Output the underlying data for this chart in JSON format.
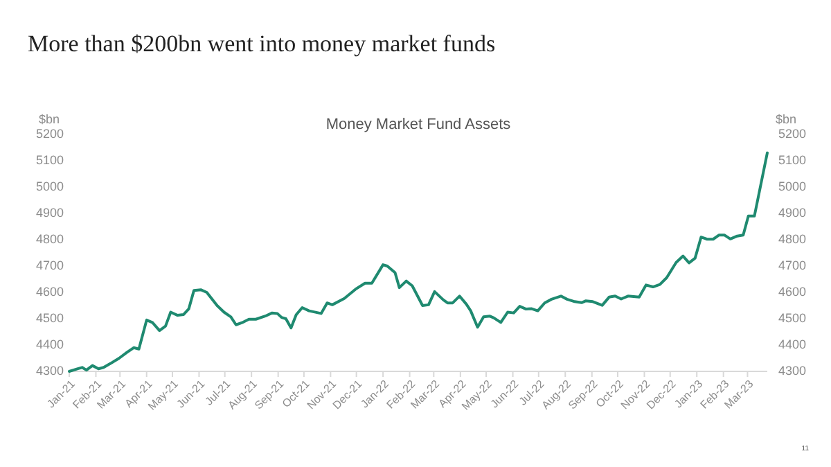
{
  "chart_data": {
    "type": "line",
    "title": "More than $200bn went into money market funds",
    "subtitle": "Money Market Fund Assets",
    "ylabel": "$bn",
    "y2label": "$bn",
    "annotations": [
      "11"
    ],
    "x": [
      "2021-01-01",
      "2021-01-11",
      "2021-01-16",
      "2021-01-21",
      "2021-01-28",
      "2021-02-04",
      "2021-02-10",
      "2021-02-18",
      "2021-02-28",
      "2021-03-09",
      "2021-03-17",
      "2021-03-23",
      "2021-04-01",
      "2021-04-08",
      "2021-04-16",
      "2021-04-23",
      "2021-04-29",
      "2021-05-07",
      "2021-05-14",
      "2021-05-20",
      "2021-05-26",
      "2021-06-03",
      "2021-06-10",
      "2021-06-22",
      "2021-06-30",
      "2021-07-08",
      "2021-07-14",
      "2021-07-21",
      "2021-07-29",
      "2021-08-06",
      "2021-08-17",
      "2021-08-25",
      "2021-08-31",
      "2021-09-05",
      "2021-09-10",
      "2021-09-16",
      "2021-09-22",
      "2021-09-29",
      "2021-10-07",
      "2021-10-21",
      "2021-10-28",
      "2021-11-03",
      "2021-11-17",
      "2021-11-30",
      "2021-12-11",
      "2021-12-19",
      "2022-01-01",
      "2022-01-06",
      "2022-01-15",
      "2022-01-20",
      "2022-01-28",
      "2022-02-04",
      "2022-02-16",
      "2022-02-23",
      "2022-03-02",
      "2022-03-12",
      "2022-03-17",
      "2022-03-23",
      "2022-03-31",
      "2022-04-08",
      "2022-04-13",
      "2022-04-21",
      "2022-04-28",
      "2022-05-05",
      "2022-05-10",
      "2022-05-18",
      "2022-05-26",
      "2022-06-02",
      "2022-06-09",
      "2022-06-16",
      "2022-06-23",
      "2022-06-30",
      "2022-07-08",
      "2022-07-16",
      "2022-07-27",
      "2022-08-03",
      "2022-08-12",
      "2022-08-20",
      "2022-08-25",
      "2022-09-02",
      "2022-09-13",
      "2022-09-21",
      "2022-09-28",
      "2022-10-05",
      "2022-10-13",
      "2022-10-26",
      "2022-11-03",
      "2022-11-11",
      "2022-11-19",
      "2022-11-27",
      "2022-12-08",
      "2022-12-16",
      "2022-12-23",
      "2022-12-30",
      "2023-01-06",
      "2023-01-13",
      "2023-01-20",
      "2023-01-27",
      "2023-02-02",
      "2023-02-09",
      "2023-02-17",
      "2023-02-24",
      "2023-03-02",
      "2023-03-09",
      "2023-03-24"
    ],
    "series": [
      {
        "color": "#1f8a70",
        "values": [
          4300,
          4310,
          4315,
          4305,
          4322,
          4310,
          4315,
          4330,
          4350,
          4372,
          4390,
          4385,
          4495,
          4485,
          4455,
          4472,
          4525,
          4513,
          4516,
          4537,
          4607,
          4610,
          4600,
          4550,
          4525,
          4507,
          4477,
          4485,
          4498,
          4498,
          4510,
          4522,
          4520,
          4505,
          4500,
          4465,
          4515,
          4542,
          4530,
          4520,
          4560,
          4553,
          4577,
          4612,
          4635,
          4635,
          4705,
          4700,
          4675,
          4618,
          4643,
          4625,
          4550,
          4553,
          4603,
          4572,
          4560,
          4560,
          4586,
          4555,
          4530,
          4468,
          4507,
          4510,
          4503,
          4486,
          4525,
          4522,
          4547,
          4537,
          4538,
          4530,
          4560,
          4574,
          4586,
          4574,
          4565,
          4561,
          4568,
          4565,
          4551,
          4582,
          4586,
          4575,
          4586,
          4582,
          4628,
          4621,
          4630,
          4656,
          4714,
          4738,
          4712,
          4730,
          4810,
          4802,
          4802,
          4818,
          4818,
          4803,
          4814,
          4818,
          4890,
          4890,
          5130
        ]
      }
    ],
    "xlim": [
      "2021-01-01",
      "2023-03-24"
    ],
    "xticks": [
      {
        "value": "2021-01-01",
        "label": "Jan-21"
      },
      {
        "value": "2021-02-01",
        "label": "Feb-21"
      },
      {
        "value": "2021-03-01",
        "label": "Mar-21"
      },
      {
        "value": "2021-04-01",
        "label": "Apr-21"
      },
      {
        "value": "2021-05-01",
        "label": "May-21"
      },
      {
        "value": "2021-06-01",
        "label": "Jun-21"
      },
      {
        "value": "2021-07-01",
        "label": "Jul-21"
      },
      {
        "value": "2021-08-01",
        "label": "Aug-21"
      },
      {
        "value": "2021-09-01",
        "label": "Sep-21"
      },
      {
        "value": "2021-10-01",
        "label": "Oct-21"
      },
      {
        "value": "2021-11-01",
        "label": "Nov-21"
      },
      {
        "value": "2021-12-01",
        "label": "Dec-21"
      },
      {
        "value": "2022-01-01",
        "label": "Jan-22"
      },
      {
        "value": "2022-02-01",
        "label": "Feb-22"
      },
      {
        "value": "2022-03-01",
        "label": "Mar-22"
      },
      {
        "value": "2022-04-01",
        "label": "Apr-22"
      },
      {
        "value": "2022-05-01",
        "label": "May-22"
      },
      {
        "value": "2022-06-01",
        "label": "Jun-22"
      },
      {
        "value": "2022-07-01",
        "label": "Jul-22"
      },
      {
        "value": "2022-08-01",
        "label": "Aug-22"
      },
      {
        "value": "2022-09-01",
        "label": "Sep-22"
      },
      {
        "value": "2022-10-01",
        "label": "Oct-22"
      },
      {
        "value": "2022-11-01",
        "label": "Nov-22"
      },
      {
        "value": "2022-12-01",
        "label": "Dec-22"
      },
      {
        "value": "2023-01-01",
        "label": "Jan-23"
      },
      {
        "value": "2023-02-01",
        "label": "Feb-23"
      },
      {
        "value": "2023-03-01",
        "label": "Mar-23"
      }
    ],
    "ylim": [
      4300,
      5200
    ],
    "yticks": [
      4300,
      4400,
      4500,
      4600,
      4700,
      4800,
      4900,
      5000,
      5100,
      5200
    ],
    "y2lim": [
      4300,
      5200
    ],
    "y2ticks": [
      4300,
      4400,
      4500,
      4600,
      4700,
      4800,
      4900,
      5000,
      5100,
      5200
    ],
    "grid": false,
    "line_style": "solid",
    "marker": "none"
  }
}
